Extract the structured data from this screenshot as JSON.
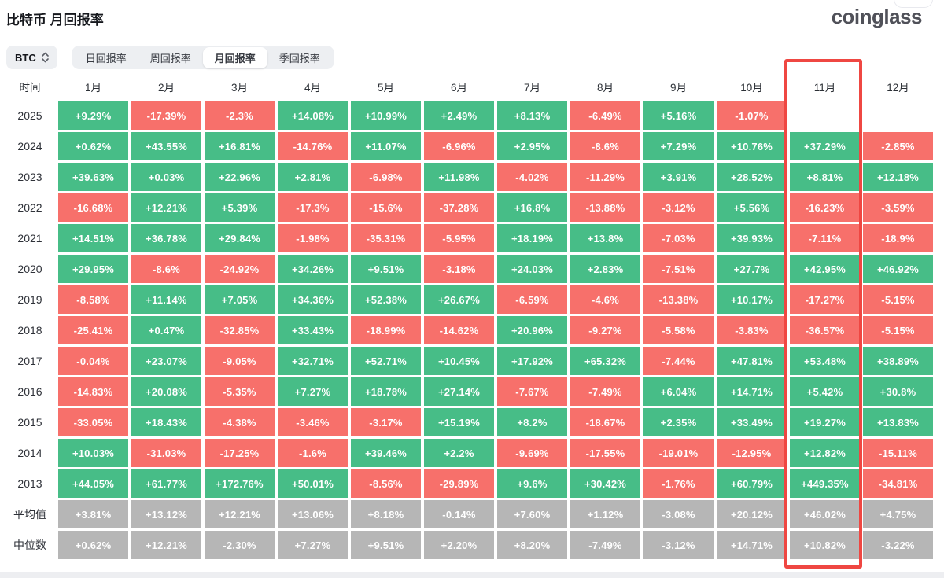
{
  "page": {
    "title": "比特币 月回报率",
    "logo": "coinglass"
  },
  "controls": {
    "coin_selector": {
      "label": "BTC"
    },
    "tabs": [
      {
        "label": "日回报率",
        "active": false
      },
      {
        "label": "周回报率",
        "active": false
      },
      {
        "label": "月回报率",
        "active": true
      },
      {
        "label": "季回报率",
        "active": false
      }
    ]
  },
  "colors": {
    "positive": "#47bd87",
    "negative": "#f7706b",
    "summary": "#b6b6b6",
    "highlight_border": "#ef4742"
  },
  "table": {
    "time_header": "时间",
    "months": [
      "1月",
      "2月",
      "3月",
      "4月",
      "5月",
      "6月",
      "7月",
      "8月",
      "9月",
      "10月",
      "11月",
      "12月"
    ],
    "highlight_column": "11月",
    "rows": [
      {
        "label": "2025",
        "type": "year",
        "values": [
          "+9.29%",
          "-17.39%",
          "-2.3%",
          "+14.08%",
          "+10.99%",
          "+2.49%",
          "+8.13%",
          "-6.49%",
          "+5.16%",
          "-1.07%",
          null,
          null
        ]
      },
      {
        "label": "2024",
        "type": "year",
        "values": [
          "+0.62%",
          "+43.55%",
          "+16.81%",
          "-14.76%",
          "+11.07%",
          "-6.96%",
          "+2.95%",
          "-8.6%",
          "+7.29%",
          "+10.76%",
          "+37.29%",
          "-2.85%"
        ]
      },
      {
        "label": "2023",
        "type": "year",
        "values": [
          "+39.63%",
          "+0.03%",
          "+22.96%",
          "+2.81%",
          "-6.98%",
          "+11.98%",
          "-4.02%",
          "-11.29%",
          "+3.91%",
          "+28.52%",
          "+8.81%",
          "+12.18%"
        ]
      },
      {
        "label": "2022",
        "type": "year",
        "values": [
          "-16.68%",
          "+12.21%",
          "+5.39%",
          "-17.3%",
          "-15.6%",
          "-37.28%",
          "+16.8%",
          "-13.88%",
          "-3.12%",
          "+5.56%",
          "-16.23%",
          "-3.59%"
        ]
      },
      {
        "label": "2021",
        "type": "year",
        "values": [
          "+14.51%",
          "+36.78%",
          "+29.84%",
          "-1.98%",
          "-35.31%",
          "-5.95%",
          "+18.19%",
          "+13.8%",
          "-7.03%",
          "+39.93%",
          "-7.11%",
          "-18.9%"
        ]
      },
      {
        "label": "2020",
        "type": "year",
        "values": [
          "+29.95%",
          "-8.6%",
          "-24.92%",
          "+34.26%",
          "+9.51%",
          "-3.18%",
          "+24.03%",
          "+2.83%",
          "-7.51%",
          "+27.7%",
          "+42.95%",
          "+46.92%"
        ]
      },
      {
        "label": "2019",
        "type": "year",
        "values": [
          "-8.58%",
          "+11.14%",
          "+7.05%",
          "+34.36%",
          "+52.38%",
          "+26.67%",
          "-6.59%",
          "-4.6%",
          "-13.38%",
          "+10.17%",
          "-17.27%",
          "-5.15%"
        ]
      },
      {
        "label": "2018",
        "type": "year",
        "values": [
          "-25.41%",
          "+0.47%",
          "-32.85%",
          "+33.43%",
          "-18.99%",
          "-14.62%",
          "+20.96%",
          "-9.27%",
          "-5.58%",
          "-3.83%",
          "-36.57%",
          "-5.15%"
        ]
      },
      {
        "label": "2017",
        "type": "year",
        "values": [
          "-0.04%",
          "+23.07%",
          "-9.05%",
          "+32.71%",
          "+52.71%",
          "+10.45%",
          "+17.92%",
          "+65.32%",
          "-7.44%",
          "+47.81%",
          "+53.48%",
          "+38.89%"
        ]
      },
      {
        "label": "2016",
        "type": "year",
        "values": [
          "-14.83%",
          "+20.08%",
          "-5.35%",
          "+7.27%",
          "+18.78%",
          "+27.14%",
          "-7.67%",
          "-7.49%",
          "+6.04%",
          "+14.71%",
          "+5.42%",
          "+30.8%"
        ]
      },
      {
        "label": "2015",
        "type": "year",
        "values": [
          "-33.05%",
          "+18.43%",
          "-4.38%",
          "-3.46%",
          "-3.17%",
          "+15.19%",
          "+8.2%",
          "-18.67%",
          "+2.35%",
          "+33.49%",
          "+19.27%",
          "+13.83%"
        ]
      },
      {
        "label": "2014",
        "type": "year",
        "values": [
          "+10.03%",
          "-31.03%",
          "-17.25%",
          "-1.6%",
          "+39.46%",
          "+2.2%",
          "-9.69%",
          "-17.55%",
          "-19.01%",
          "-12.95%",
          "+12.82%",
          "-15.11%"
        ]
      },
      {
        "label": "2013",
        "type": "year",
        "values": [
          "+44.05%",
          "+61.77%",
          "+172.76%",
          "+50.01%",
          "-8.56%",
          "-29.89%",
          "+9.6%",
          "+30.42%",
          "-1.76%",
          "+60.79%",
          "+449.35%",
          "-34.81%"
        ]
      },
      {
        "label": "平均值",
        "type": "summary",
        "values": [
          "+3.81%",
          "+13.12%",
          "+12.21%",
          "+13.06%",
          "+8.18%",
          "-0.14%",
          "+7.60%",
          "+1.12%",
          "-3.08%",
          "+20.12%",
          "+46.02%",
          "+4.75%"
        ]
      },
      {
        "label": "中位数",
        "type": "summary",
        "values": [
          "+0.62%",
          "+12.21%",
          "-2.30%",
          "+7.27%",
          "+9.51%",
          "+2.20%",
          "+8.20%",
          "-7.49%",
          "-3.12%",
          "+14.71%",
          "+10.82%",
          "-3.22%"
        ]
      }
    ]
  }
}
